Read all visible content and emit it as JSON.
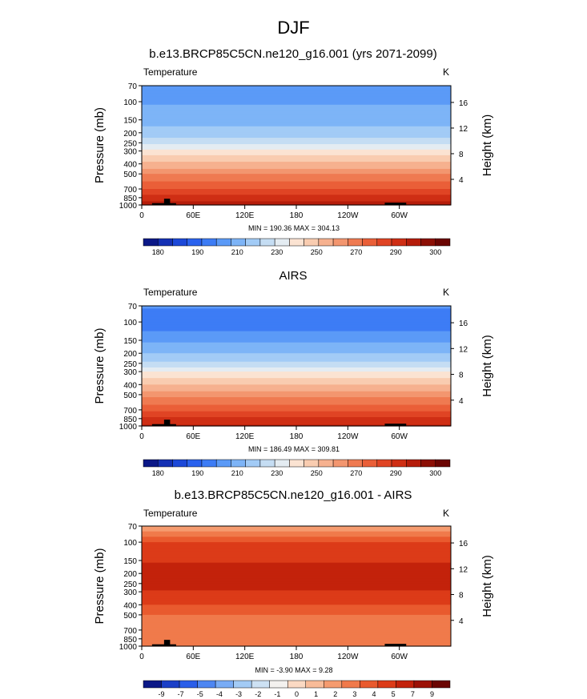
{
  "figure": {
    "title": "DJF"
  },
  "colors": {
    "temp_scale": [
      "#0b1887",
      "#1430b4",
      "#1c48d8",
      "#2a62ee",
      "#3d7cf5",
      "#5b9af7",
      "#7db4f7",
      "#a2cbf6",
      "#c5ddf3",
      "#e4ecf2",
      "#fbe3d2",
      "#f9ccb0",
      "#f6b18f",
      "#f3966f",
      "#ef7a51",
      "#ea5f38",
      "#e04424",
      "#cf2e14",
      "#b51c0a",
      "#8c0f05",
      "#6b0502"
    ],
    "diff_scale": [
      "#0b1887",
      "#1b3fc7",
      "#2a5ee9",
      "#4d86f2",
      "#79acf5",
      "#a3cbf5",
      "#cde1f3",
      "#f3f1ef",
      "#fbd9c3",
      "#f8bb98",
      "#f59b6f",
      "#f07a4b",
      "#e95a2e",
      "#dc3b18",
      "#c3220b",
      "#9c1106",
      "#6b0502"
    ]
  },
  "chart_data": [
    {
      "type": "heatmap",
      "title": "b.e13.BRCP85C5CN.ne120_g16.001 (yrs 2071-2099)",
      "left_label": "Temperature",
      "right_label": "K",
      "xlabel": "",
      "ylabel": "Pressure (mb)",
      "ylabel_right": "Height (km)",
      "x_ticks": [
        "0",
        "60E",
        "120E",
        "180",
        "120W",
        "60W"
      ],
      "x_tick_values": [
        0,
        60,
        120,
        180,
        240,
        300
      ],
      "xlim": [
        0,
        360
      ],
      "y_ticks": [
        70,
        100,
        150,
        200,
        250,
        300,
        400,
        500,
        700,
        850,
        1000
      ],
      "ylim": [
        70,
        1000
      ],
      "y_scale": "log",
      "right_ticks": [
        4,
        8,
        12,
        16
      ],
      "stats": "MIN = 190.36  MAX = 304.13",
      "min": 190.36,
      "max": 304.13,
      "colorbar_labels": [
        "180",
        "190",
        "210",
        "230",
        "250",
        "270",
        "290",
        "300"
      ],
      "levels": [
        {
          "p": 70,
          "value": 210
        },
        {
          "p": 100,
          "value": 210
        },
        {
          "p": 150,
          "value": 215
        },
        {
          "p": 200,
          "value": 220
        },
        {
          "p": 250,
          "value": 228
        },
        {
          "p": 300,
          "value": 238
        },
        {
          "p": 400,
          "value": 252
        },
        {
          "p": 500,
          "value": 262
        },
        {
          "p": 700,
          "value": 276
        },
        {
          "p": 850,
          "value": 285
        },
        {
          "p": 1000,
          "value": 292
        }
      ]
    },
    {
      "type": "heatmap",
      "title": "AIRS",
      "left_label": "Temperature",
      "right_label": "K",
      "xlabel": "",
      "ylabel": "Pressure (mb)",
      "ylabel_right": "Height (km)",
      "x_ticks": [
        "0",
        "60E",
        "120E",
        "180",
        "120W",
        "60W"
      ],
      "x_tick_values": [
        0,
        60,
        120,
        180,
        240,
        300
      ],
      "xlim": [
        0,
        360
      ],
      "y_ticks": [
        70,
        100,
        150,
        200,
        250,
        300,
        400,
        500,
        700,
        850,
        1000
      ],
      "ylim": [
        70,
        1000
      ],
      "y_scale": "log",
      "right_ticks": [
        4,
        8,
        12,
        16
      ],
      "stats": "MIN = 186.49  MAX = 309.81",
      "min": 186.49,
      "max": 309.81,
      "colorbar_labels": [
        "180",
        "190",
        "210",
        "230",
        "250",
        "270",
        "290",
        "300"
      ],
      "levels": [
        {
          "p": 70,
          "value": 205
        },
        {
          "p": 100,
          "value": 200
        },
        {
          "p": 150,
          "value": 210
        },
        {
          "p": 200,
          "value": 217
        },
        {
          "p": 250,
          "value": 225
        },
        {
          "p": 300,
          "value": 236
        },
        {
          "p": 400,
          "value": 250
        },
        {
          "p": 500,
          "value": 260
        },
        {
          "p": 700,
          "value": 274
        },
        {
          "p": 850,
          "value": 283
        },
        {
          "p": 1000,
          "value": 290
        }
      ]
    },
    {
      "type": "heatmap",
      "title": "b.e13.BRCP85C5CN.ne120_g16.001 - AIRS",
      "left_label": "Temperature",
      "right_label": "K",
      "xlabel": "",
      "ylabel": "Pressure (mb)",
      "ylabel_right": "Height (km)",
      "x_ticks": [
        "0",
        "60E",
        "120E",
        "180",
        "120W",
        "60W"
      ],
      "x_tick_values": [
        0,
        60,
        120,
        180,
        240,
        300
      ],
      "xlim": [
        0,
        360
      ],
      "y_ticks": [
        70,
        100,
        150,
        200,
        250,
        300,
        400,
        500,
        700,
        850,
        1000
      ],
      "ylim": [
        70,
        1000
      ],
      "y_scale": "log",
      "right_ticks": [
        4,
        8,
        12,
        16
      ],
      "stats": "MIN = -3.90  MAX =  9.28",
      "min": -3.9,
      "max": 9.28,
      "colorbar_labels": [
        "-9",
        "-7",
        "-5",
        "-4",
        "-3",
        "-2",
        "-1",
        "0",
        "1",
        "2",
        "3",
        "4",
        "5",
        "7",
        "9"
      ],
      "levels": [
        {
          "p": 70,
          "value": 2
        },
        {
          "p": 100,
          "value": 5
        },
        {
          "p": 150,
          "value": 6
        },
        {
          "p": 200,
          "value": 7
        },
        {
          "p": 250,
          "value": 7
        },
        {
          "p": 300,
          "value": 6
        },
        {
          "p": 400,
          "value": 5
        },
        {
          "p": 500,
          "value": 4
        },
        {
          "p": 700,
          "value": 3
        },
        {
          "p": 850,
          "value": 3
        },
        {
          "p": 1000,
          "value": 3
        }
      ]
    }
  ]
}
